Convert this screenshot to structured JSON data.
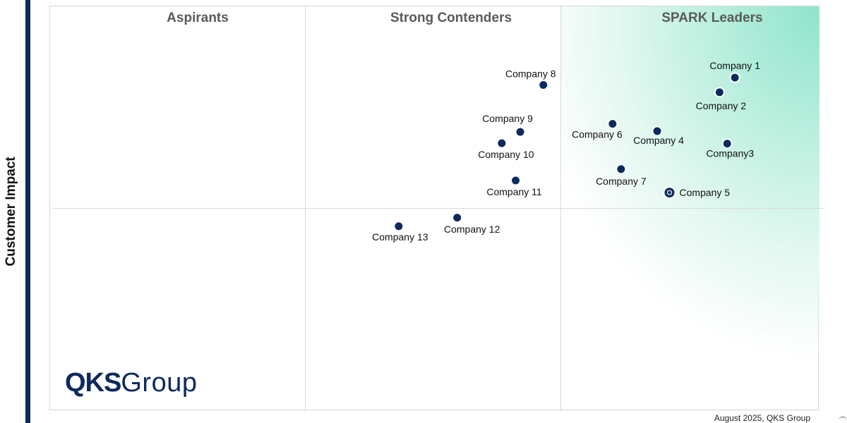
{
  "y_axis_label": "Customer Impact",
  "quadrants": [
    {
      "label": "Aspirants"
    },
    {
      "label": "Strong Contenders"
    },
    {
      "label": "SPARK Leaders"
    }
  ],
  "logo": {
    "bold": "QKS",
    "rest": "Group"
  },
  "footer": "August 2025, QKS Group",
  "colors": {
    "dot": "#0d2a5c",
    "leader_gradient": "#8fe4cb",
    "brand": "#0d2a5c"
  },
  "chart_data": {
    "type": "scatter",
    "ylabel": "Customer Impact",
    "xlim": [
      0,
      100
    ],
    "ylim": [
      0,
      100
    ],
    "grid": false,
    "points": [
      {
        "label": "Company 1",
        "x": 89.1,
        "y": 82.2
      },
      {
        "label": "Company 2",
        "x": 87.1,
        "y": 78.6
      },
      {
        "label": "Company3",
        "x": 88.1,
        "y": 65.9
      },
      {
        "label": "Company 4",
        "x": 79.0,
        "y": 69.0
      },
      {
        "label": "Company 5",
        "x": 80.6,
        "y": 53.8,
        "highlight": true
      },
      {
        "label": "Company 6",
        "x": 73.2,
        "y": 70.8
      },
      {
        "label": "Company 7",
        "x": 74.3,
        "y": 59.6
      },
      {
        "label": "Company 8",
        "x": 64.2,
        "y": 80.4
      },
      {
        "label": "Company 9",
        "x": 61.2,
        "y": 68.8
      },
      {
        "label": "Company 10",
        "x": 58.8,
        "y": 66.0
      },
      {
        "label": "Company 11",
        "x": 60.6,
        "y": 56.8
      },
      {
        "label": "Company 12",
        "x": 53.0,
        "y": 47.6
      },
      {
        "label": "Company 13",
        "x": 45.4,
        "y": 45.5
      }
    ]
  }
}
